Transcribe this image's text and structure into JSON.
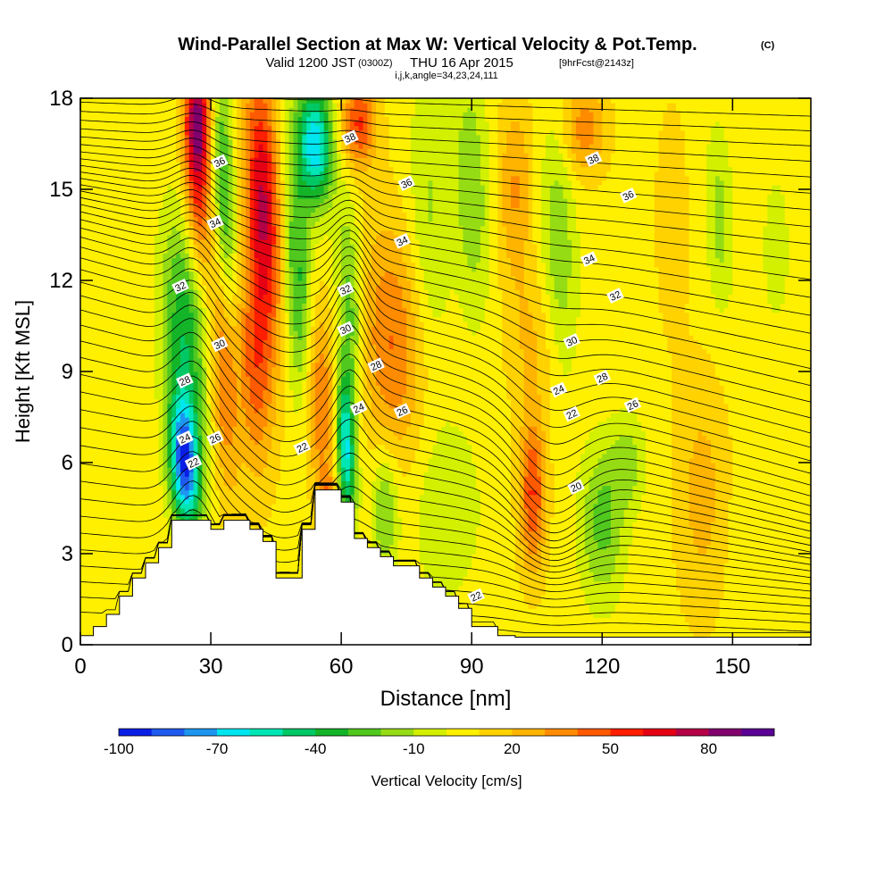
{
  "title": {
    "main": "Wind-Parallel Section at Max W: Vertical Velocity & Pot.Temp.",
    "copyright": "(C)",
    "valid_prefix": "Valid 1200 JST",
    "valid_utc": "(0300Z)",
    "valid_date": "THU 16 Apr 2015",
    "forecast": "[9hrFcst@2143z]",
    "grid_info": "i,j,k,angle=34,23,24,111"
  },
  "chart_data": {
    "type": "heatmap",
    "xlabel": "Distance [nm]",
    "ylabel": "Height [Kft MSL]",
    "xlim": [
      0,
      168
    ],
    "ylim": [
      0,
      18
    ],
    "xticks": [
      0,
      30,
      60,
      90,
      120,
      150
    ],
    "yticks": [
      0,
      3,
      6,
      9,
      12,
      15,
      18
    ],
    "x_tick_labels": [
      "0",
      "30",
      "60",
      "90",
      "120",
      "150"
    ],
    "y_tick_labels": [
      "0",
      "3",
      "6",
      "9",
      "12",
      "15",
      "18"
    ],
    "colorbar": {
      "label": "Vertical Velocity [cm/s]",
      "tick_labels": [
        "-100",
        "-70",
        "-40",
        "-10",
        "20",
        "50",
        "80"
      ],
      "tick_values": [
        -100,
        -70,
        -40,
        -10,
        20,
        50,
        80
      ],
      "range": [
        -100,
        100
      ],
      "colors": [
        "#0a1ee6",
        "#1e5af0",
        "#1e96f0",
        "#00e6f0",
        "#00e6b4",
        "#00c864",
        "#14b428",
        "#50c81e",
        "#96dc14",
        "#d2f000",
        "#fff000",
        "#ffd200",
        "#ffb400",
        "#ff8c00",
        "#ff5a00",
        "#ff1e00",
        "#e60014",
        "#b40046",
        "#82006e",
        "#5a0096"
      ]
    },
    "theta_contour_labels": [
      {
        "x": 26,
        "y": 6.0,
        "label": "22"
      },
      {
        "x": 24,
        "y": 6.8,
        "label": "24"
      },
      {
        "x": 31,
        "y": 6.8,
        "label": "26"
      },
      {
        "x": 24,
        "y": 8.7,
        "label": "28"
      },
      {
        "x": 32,
        "y": 9.9,
        "label": "30"
      },
      {
        "x": 23,
        "y": 11.8,
        "label": "32"
      },
      {
        "x": 31,
        "y": 13.9,
        "label": "34"
      },
      {
        "x": 32,
        "y": 15.9,
        "label": "36"
      },
      {
        "x": 62,
        "y": 16.7,
        "label": "38"
      },
      {
        "x": 75,
        "y": 15.2,
        "label": "36"
      },
      {
        "x": 74,
        "y": 13.3,
        "label": "34"
      },
      {
        "x": 61,
        "y": 11.7,
        "label": "32"
      },
      {
        "x": 61,
        "y": 10.4,
        "label": "30"
      },
      {
        "x": 68,
        "y": 9.2,
        "label": "28"
      },
      {
        "x": 64,
        "y": 7.8,
        "label": "24"
      },
      {
        "x": 74,
        "y": 7.7,
        "label": "26"
      },
      {
        "x": 51,
        "y": 6.5,
        "label": "22"
      },
      {
        "x": 118,
        "y": 16.0,
        "label": "38"
      },
      {
        "x": 126,
        "y": 14.8,
        "label": "36"
      },
      {
        "x": 117,
        "y": 12.7,
        "label": "34"
      },
      {
        "x": 123,
        "y": 11.5,
        "label": "32"
      },
      {
        "x": 113,
        "y": 10.0,
        "label": "30"
      },
      {
        "x": 120,
        "y": 8.8,
        "label": "28"
      },
      {
        "x": 110,
        "y": 8.4,
        "label": "24"
      },
      {
        "x": 127,
        "y": 7.9,
        "label": "26"
      },
      {
        "x": 113,
        "y": 7.6,
        "label": "22"
      },
      {
        "x": 114,
        "y": 5.2,
        "label": "20"
      },
      {
        "x": 91,
        "y": 1.6,
        "label": "22"
      }
    ]
  }
}
